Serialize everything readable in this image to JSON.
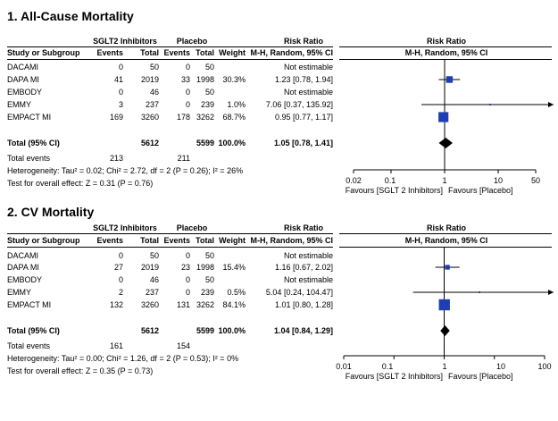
{
  "panels": [
    {
      "title": "1. All-Cause Mortality",
      "group1": "SGLT2 Inhibitors",
      "group2": "Placebo",
      "effect_header": "Risk Ratio",
      "effect_subheader": "M-H, Random, 95% CI",
      "plot_header": "Risk Ratio",
      "plot_subheader": "M-H, Random, 95% CI",
      "columns": [
        "Study or Subgroup",
        "Events",
        "Total",
        "Events",
        "Total",
        "Weight"
      ],
      "studies": [
        {
          "name": "DACAMI",
          "e1": "0",
          "t1": "50",
          "e2": "0",
          "t2": "50",
          "weight": "",
          "ci": "Not estimable"
        },
        {
          "name": "DAPA MI",
          "e1": "41",
          "t1": "2019",
          "e2": "33",
          "t2": "1998",
          "weight": "30.3%",
          "ci": "1.23 [0.78, 1.94]"
        },
        {
          "name": "EMBODY",
          "e1": "0",
          "t1": "46",
          "e2": "0",
          "t2": "50",
          "weight": "",
          "ci": "Not estimable"
        },
        {
          "name": "EMMY",
          "e1": "3",
          "t1": "237",
          "e2": "0",
          "t2": "239",
          "weight": "1.0%",
          "ci": "7.06 [0.37, 135.92]"
        },
        {
          "name": "EMPACT MI",
          "e1": "169",
          "t1": "3260",
          "e2": "178",
          "t2": "3262",
          "weight": "68.7%",
          "ci": "0.95 [0.77, 1.17]"
        }
      ],
      "total": {
        "name": "Total (95% CI)",
        "t1": "5612",
        "t2": "5599",
        "weight": "100.0%",
        "ci": "1.05 [0.78, 1.41]"
      },
      "total_events": {
        "name": "Total events",
        "e1": "213",
        "e2": "211"
      },
      "heterogeneity": "Heterogeneity: Tau² = 0.02; Chi² = 2.72, df = 2 (P = 0.26); I² = 26%",
      "overall_effect": "Test for overall effect: Z = 0.31 (P = 0.76)",
      "axis_ticks": [
        "0.02",
        "0.1",
        "1",
        "10",
        "50"
      ],
      "favours_left": "Favours [SGLT 2 Inhibitors]",
      "favours_right": "Favours [Placebo]"
    },
    {
      "title": "2. CV Mortality",
      "group1": "SGLT2 Inhibitors",
      "group2": "Placebo",
      "effect_header": "Risk Ratio",
      "effect_subheader": "M-H, Random, 95% CI",
      "plot_header": "Risk Ratio",
      "plot_subheader": "M-H, Random, 95% CI",
      "columns": [
        "Study or Subgroup",
        "Events",
        "Total",
        "Events",
        "Total",
        "Weight"
      ],
      "studies": [
        {
          "name": "DACAMI",
          "e1": "0",
          "t1": "50",
          "e2": "0",
          "t2": "50",
          "weight": "",
          "ci": "Not estimable"
        },
        {
          "name": "DAPA MI",
          "e1": "27",
          "t1": "2019",
          "e2": "23",
          "t2": "1998",
          "weight": "15.4%",
          "ci": "1.16 [0.67, 2.02]"
        },
        {
          "name": "EMBODY",
          "e1": "0",
          "t1": "46",
          "e2": "0",
          "t2": "50",
          "weight": "",
          "ci": "Not estimable"
        },
        {
          "name": "EMMY",
          "e1": "2",
          "t1": "237",
          "e2": "0",
          "t2": "239",
          "weight": "0.5%",
          "ci": "5.04 [0.24, 104.47]"
        },
        {
          "name": "EMPACT MI",
          "e1": "132",
          "t1": "3260",
          "e2": "131",
          "t2": "3262",
          "weight": "84.1%",
          "ci": "1.01 [0.80, 1.28]"
        }
      ],
      "total": {
        "name": "Total (95% CI)",
        "t1": "5612",
        "t2": "5599",
        "weight": "100.0%",
        "ci": "1.04 [0.84, 1.29]"
      },
      "total_events": {
        "name": "Total events",
        "e1": "161",
        "e2": "154"
      },
      "heterogeneity": "Heterogeneity: Tau² = 0.00; Chi² = 1.26, df = 2 (P = 0.53); I² = 0%",
      "overall_effect": "Test for overall effect: Z = 0.35 (P = 0.73)",
      "axis_ticks": [
        "0.01",
        "0.1",
        "1",
        "10",
        "100"
      ],
      "favours_left": "Favours [SGLT 2 Inhibitors]",
      "favours_right": "Favours [Placebo]"
    }
  ],
  "chart_data": [
    {
      "type": "forest",
      "title": "1. All-Cause Mortality",
      "scale": "log",
      "xlim": [
        0.02,
        50
      ],
      "ticks": [
        0.02,
        0.1,
        1,
        10,
        50
      ],
      "studies": [
        {
          "name": "DACAMI",
          "rr": null,
          "lo": null,
          "hi": null,
          "weight": null
        },
        {
          "name": "DAPA MI",
          "rr": 1.23,
          "lo": 0.78,
          "hi": 1.94,
          "weight": 30.3
        },
        {
          "name": "EMBODY",
          "rr": null,
          "lo": null,
          "hi": null,
          "weight": null
        },
        {
          "name": "EMMY",
          "rr": 7.06,
          "lo": 0.37,
          "hi": 135.92,
          "weight": 1.0
        },
        {
          "name": "EMPACT MI",
          "rr": 0.95,
          "lo": 0.77,
          "hi": 1.17,
          "weight": 68.7
        }
      ],
      "pooled": {
        "rr": 1.05,
        "lo": 0.78,
        "hi": 1.41
      },
      "colors": {
        "square": "#1f3fb0",
        "line": "#000000",
        "diamond": "#000000"
      }
    },
    {
      "type": "forest",
      "title": "2. CV Mortality",
      "scale": "log",
      "xlim": [
        0.01,
        100
      ],
      "ticks": [
        0.01,
        0.1,
        1,
        10,
        100
      ],
      "studies": [
        {
          "name": "DACAMI",
          "rr": null,
          "lo": null,
          "hi": null,
          "weight": null
        },
        {
          "name": "DAPA MI",
          "rr": 1.16,
          "lo": 0.67,
          "hi": 2.02,
          "weight": 15.4
        },
        {
          "name": "EMBODY",
          "rr": null,
          "lo": null,
          "hi": null,
          "weight": null
        },
        {
          "name": "EMMY",
          "rr": 5.04,
          "lo": 0.24,
          "hi": 104.47,
          "weight": 0.5
        },
        {
          "name": "EMPACT MI",
          "rr": 1.01,
          "lo": 0.8,
          "hi": 1.28,
          "weight": 84.1
        }
      ],
      "pooled": {
        "rr": 1.04,
        "lo": 0.84,
        "hi": 1.29
      },
      "colors": {
        "square": "#1f3fb0",
        "line": "#000000",
        "diamond": "#000000"
      }
    }
  ]
}
